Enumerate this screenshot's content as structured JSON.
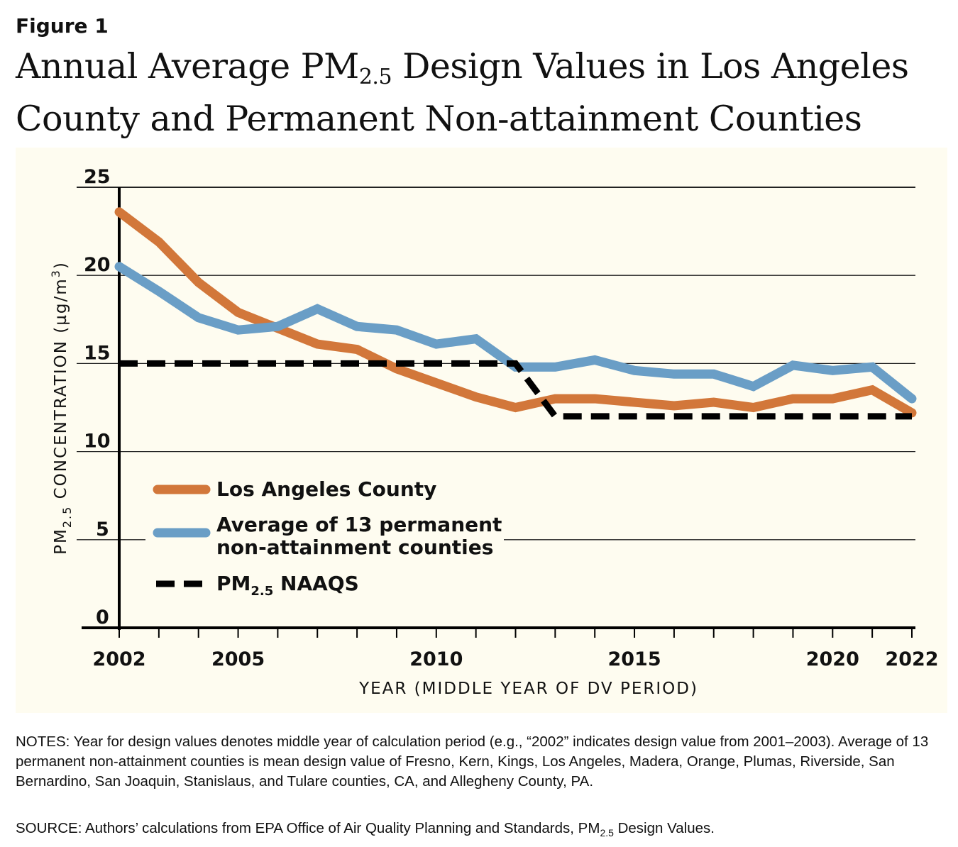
{
  "figure_label": "Figure 1",
  "title": {
    "pre": "Annual Average PM",
    "sub": "2.5",
    "post": " Design Values in Los Angeles County and Permanent Non-attainment Counties"
  },
  "chart_data": {
    "type": "line",
    "title": "Annual Average PM2.5 Design Values in Los Angeles County and Permanent Non-attainment Counties",
    "xlabel": "YEAR (MIDDLE YEAR OF DV PERIOD)",
    "ylabel": {
      "pre": "PM",
      "sub": "2.5",
      "post": " CONCENTRATION (µg/m",
      "sup": "3",
      "end": ")"
    },
    "xlim": [
      2002,
      2022
    ],
    "ylim": [
      0,
      25
    ],
    "xticks": [
      2002,
      2005,
      2010,
      2015,
      2020,
      2022
    ],
    "yticks": [
      0,
      5,
      10,
      15,
      20,
      25
    ],
    "grid": "horizontal",
    "legend_placement": "lower-left",
    "x": [
      2002,
      2003,
      2004,
      2005,
      2006,
      2007,
      2008,
      2009,
      2010,
      2011,
      2012,
      2013,
      2014,
      2015,
      2016,
      2017,
      2018,
      2019,
      2020,
      2021,
      2022
    ],
    "series": [
      {
        "name": "Los Angeles County",
        "color": "#d2773a",
        "style": "solid",
        "values": [
          23.6,
          21.9,
          19.6,
          17.9,
          17.0,
          16.1,
          15.8,
          14.7,
          13.9,
          13.1,
          12.5,
          13.0,
          13.0,
          12.8,
          12.6,
          12.8,
          12.5,
          13.0,
          13.0,
          13.5,
          12.2
        ]
      },
      {
        "name": "Average of 13 permanent non-attainment counties",
        "name_lines": [
          "Average of 13 permanent",
          "non-attainment counties"
        ],
        "color": "#6a9ec6",
        "style": "solid",
        "values": [
          20.5,
          19.1,
          17.6,
          16.9,
          17.1,
          18.1,
          17.1,
          16.9,
          16.1,
          16.4,
          14.8,
          14.8,
          15.2,
          14.6,
          14.4,
          14.4,
          13.7,
          14.9,
          14.6,
          14.8,
          13.0
        ]
      },
      {
        "name": "PM2.5 NAAQS",
        "name_parts": {
          "pre": "PM",
          "sub": "2.5",
          "post": " NAAQS"
        },
        "color": "#000000",
        "style": "dashed",
        "values": [
          15,
          15,
          15,
          15,
          15,
          15,
          15,
          15,
          15,
          15,
          15,
          12,
          12,
          12,
          12,
          12,
          12,
          12,
          12,
          12,
          12
        ]
      }
    ]
  },
  "notes": "NOTES: Year for design values denotes middle year of calculation period (e.g., “2002” indicates design value from 2001–2003). Average of 13 permanent non-attainment counties is mean design value of Fresno, Kern, Kings, Los Angeles, Madera, Orange, Plumas, Riverside, San Bernardino, San Joaquin, Stanislaus, and Tulare counties, CA, and Allegheny County, PA.",
  "source": {
    "pre": "SOURCE: Authors’ calculations from EPA Office of Air Quality Planning and Standards, PM",
    "sub": "2.5",
    "post": " Design Values."
  }
}
